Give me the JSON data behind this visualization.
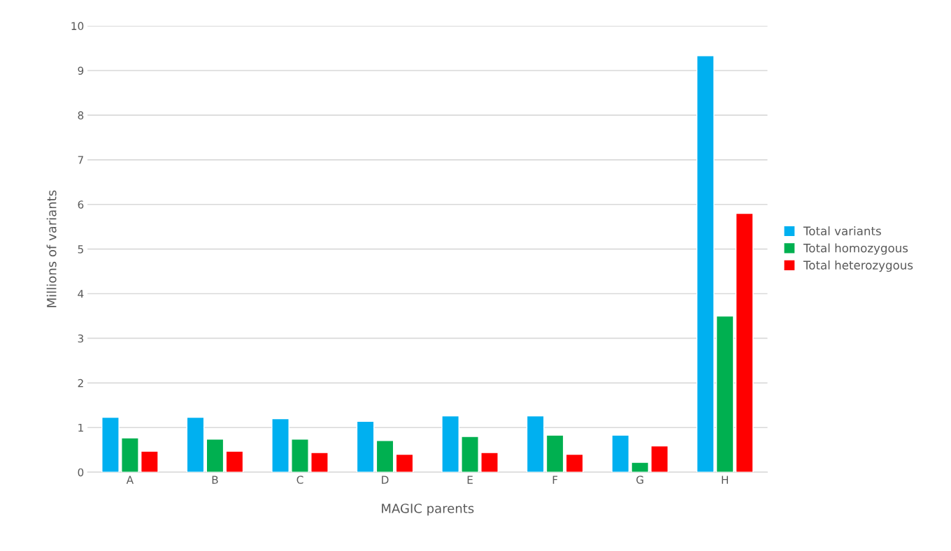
{
  "chart_data": {
    "type": "bar",
    "xlabel": "MAGIC parents",
    "ylabel": "Millions of variants",
    "categories": [
      "A",
      "B",
      "C",
      "D",
      "E",
      "F",
      "G",
      "H"
    ],
    "series": [
      {
        "name": "Total variants",
        "color": "#00b0f0",
        "values": [
          1.23,
          1.23,
          1.2,
          1.14,
          1.26,
          1.26,
          0.83,
          9.33
        ]
      },
      {
        "name": "Total homozygous",
        "color": "#00b050",
        "values": [
          0.77,
          0.74,
          0.74,
          0.71,
          0.8,
          0.83,
          0.22,
          3.5
        ]
      },
      {
        "name": "Total heterozygous",
        "color": "#ff0000",
        "values": [
          0.47,
          0.47,
          0.44,
          0.4,
          0.44,
          0.4,
          0.59,
          5.8
        ]
      }
    ],
    "ylim": [
      0,
      10
    ],
    "yticks": [
      0,
      1,
      2,
      3,
      4,
      5,
      6,
      7,
      8,
      9,
      10
    ],
    "grid": "y",
    "legend": "right"
  }
}
